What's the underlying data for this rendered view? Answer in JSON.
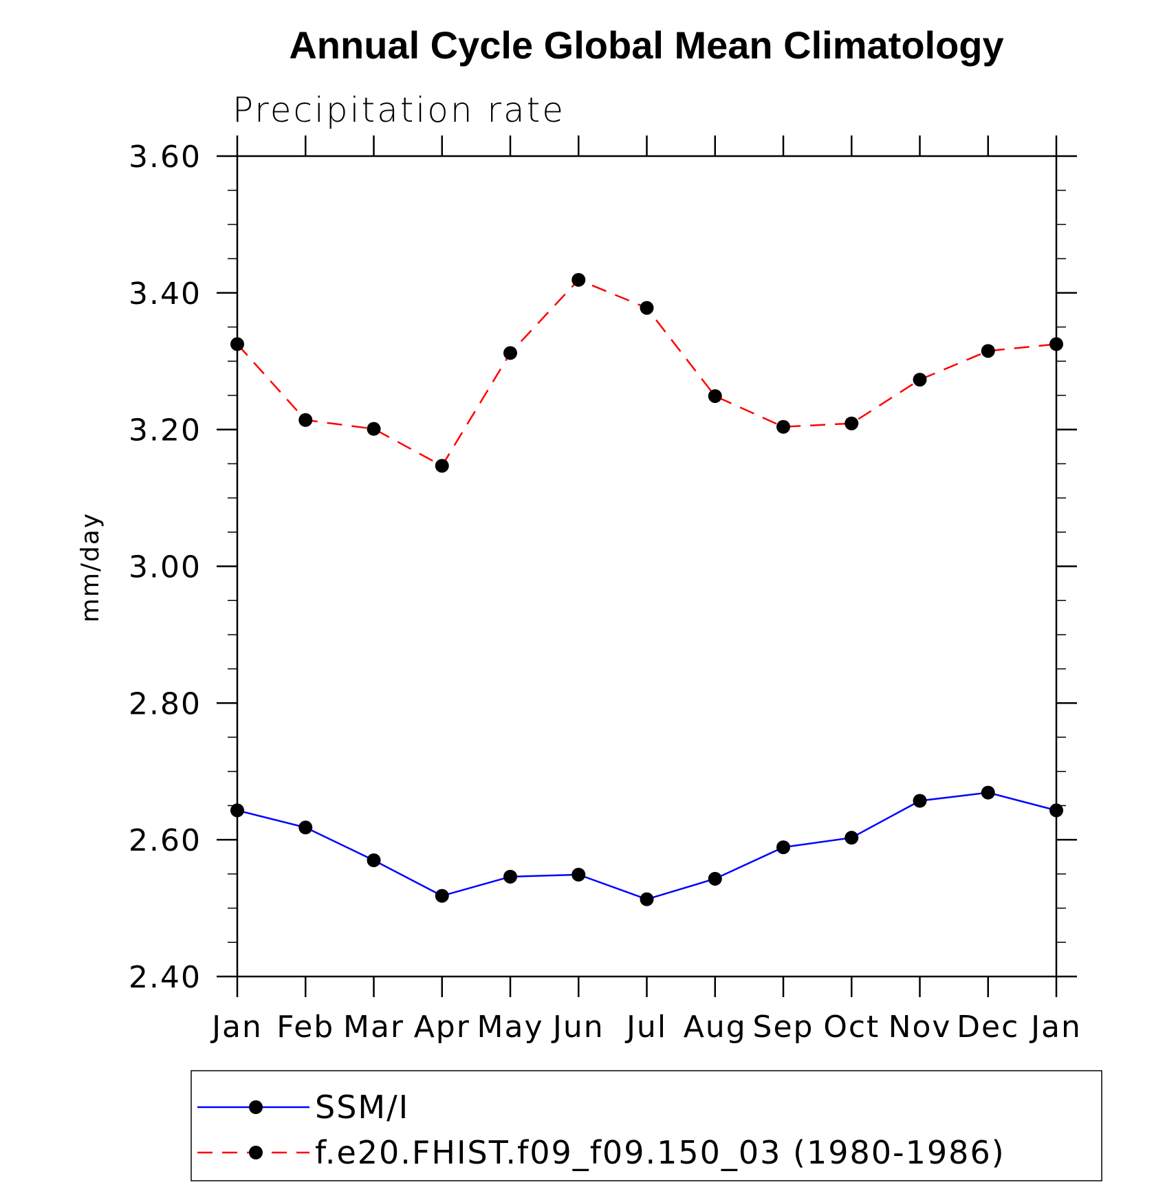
{
  "chart_data": {
    "type": "line",
    "title": "Annual Cycle Global Mean Climatology",
    "subtitle": "Precipitation rate",
    "ylabel": "mm/day",
    "xlabel": "",
    "categories": [
      "Jan",
      "Feb",
      "Mar",
      "Apr",
      "May",
      "Jun",
      "Jul",
      "Aug",
      "Sep",
      "Oct",
      "Nov",
      "Dec",
      "Jan"
    ],
    "ylim": [
      2.4,
      3.6
    ],
    "yticks": [
      "2.40",
      "2.60",
      "2.80",
      "3.00",
      "3.20",
      "3.40",
      "3.60"
    ],
    "grid": false,
    "legend_position": "bottom",
    "series": [
      {
        "name": "SSM/I",
        "color": "#0000ff",
        "line_style": "solid",
        "marker": "filled-circle",
        "values": [
          2.643,
          2.618,
          2.57,
          2.518,
          2.546,
          2.549,
          2.513,
          2.543,
          2.589,
          2.603,
          2.657,
          2.669,
          2.643
        ]
      },
      {
        "name": "f.e20.FHIST.f09_f09.150_03 (1980-1986)",
        "color": "#ff0000",
        "line_style": "dashed",
        "marker": "filled-circle",
        "values": [
          3.325,
          3.214,
          3.201,
          3.147,
          3.312,
          3.419,
          3.378,
          3.249,
          3.204,
          3.209,
          3.273,
          3.315,
          3.325
        ]
      }
    ]
  }
}
